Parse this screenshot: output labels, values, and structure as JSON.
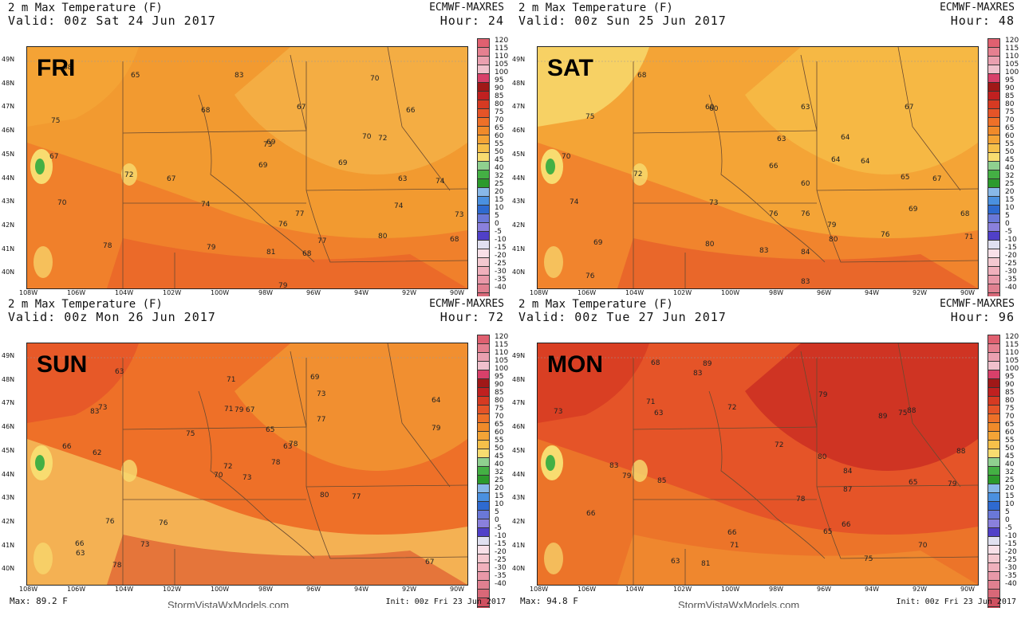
{
  "common": {
    "field": "2 m Max Temperature (F)",
    "model": "ECMWF-MAXRES",
    "site": "StormVistaWxModels.com",
    "init": "Init: 00z Fri 23 Jun 2017",
    "lat_labels": [
      "49N",
      "48N",
      "47N",
      "46N",
      "45N",
      "44N",
      "43N",
      "42N",
      "41N",
      "40N"
    ],
    "lon_labels": [
      "108W",
      "106W",
      "104W",
      "102W",
      "100W",
      "98W",
      "96W",
      "94W",
      "92W",
      "90W"
    ],
    "colorbar": [
      "120",
      "115",
      "110",
      "105",
      "100",
      "95",
      "90",
      "85",
      "80",
      "75",
      "70",
      "65",
      "60",
      "55",
      "50",
      "45",
      "40",
      "32",
      "25",
      "20",
      "15",
      "10",
      "5",
      "0",
      "-5",
      "-10",
      "-15",
      "-20",
      "-25",
      "-30",
      "-35",
      "-40"
    ],
    "colorbar_colors": [
      "#e06070",
      "#e58090",
      "#eaa0b0",
      "#f0c0cc",
      "#d8406a",
      "#a01818",
      "#c02020",
      "#d63a22",
      "#e55428",
      "#ee7028",
      "#f08a2a",
      "#f4a436",
      "#f6c04a",
      "#f8dc70",
      "#8fd08f",
      "#44b044",
      "#2c9a2c",
      "#88b8e8",
      "#4a90e0",
      "#2e6ad0",
      "#6a78d8",
      "#8a80dc",
      "#5040c8",
      "#e0e0f0",
      "#f8e0e8",
      "#f4c8d0",
      "#f0b0bc",
      "#e898a8",
      "#e08090",
      "#d86878",
      "#d05060",
      "#c83848"
    ]
  },
  "panels": [
    {
      "day": "FRI",
      "valid": "Valid: 00z Sat 24 Jun 2017",
      "hour": "Hour: 24",
      "max": "",
      "values": [
        "68",
        "65",
        "83",
        "75",
        "67",
        "68",
        "67",
        "70",
        "66",
        "67",
        "69",
        "70",
        "72",
        "69",
        "69",
        "63",
        "74",
        "70",
        "72",
        "73",
        "74",
        "77",
        "74",
        "73",
        "76",
        "77",
        "80",
        "68",
        "78",
        "79",
        "81",
        "68",
        "79"
      ]
    },
    {
      "day": "SAT",
      "valid": "Valid: 00z Sun 25 Jun 2017",
      "hour": "Hour: 48",
      "max": "",
      "values": [
        "68",
        "60",
        "63",
        "67",
        "75",
        "60",
        "63",
        "64",
        "70",
        "72",
        "66",
        "64",
        "64",
        "65",
        "67",
        "74",
        "73",
        "60",
        "69",
        "76",
        "76",
        "79",
        "68",
        "80",
        "83",
        "84",
        "80",
        "76",
        "71",
        "69",
        "76",
        "83"
      ]
    },
    {
      "day": "SUN",
      "valid": "Valid: 00z Mon 26 Jun 2017",
      "hour": "Hour: 72",
      "max": "Max: 89.2 F",
      "values": [
        "73",
        "83",
        "72",
        "66",
        "63",
        "76",
        "69",
        "67",
        "73",
        "78",
        "63",
        "67",
        "62",
        "64",
        "70",
        "77",
        "78",
        "71",
        "65",
        "76",
        "75",
        "63",
        "73",
        "79",
        "78",
        "77",
        "73",
        "71",
        "66",
        "80",
        "79"
      ]
    },
    {
      "day": "MON",
      "valid": "Valid: 00z Tue 27 Jun 2017",
      "hour": "Hour: 96",
      "max": "Max: 94.8 F",
      "values": [
        "79",
        "65",
        "89",
        "72",
        "71",
        "63",
        "72",
        "70",
        "88",
        "80",
        "73",
        "68",
        "66",
        "65",
        "89",
        "79",
        "75",
        "66",
        "63",
        "85",
        "78",
        "79",
        "71",
        "81",
        "87",
        "84",
        "83",
        "75",
        "66",
        "88",
        "83"
      ]
    }
  ]
}
